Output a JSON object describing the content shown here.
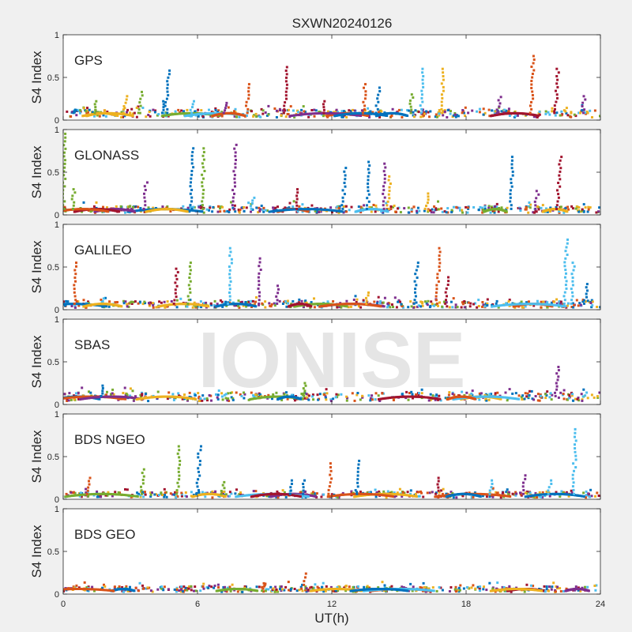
{
  "watermark": "IONISE",
  "chart_data": {
    "type": "scatter",
    "title": "SXWN20240126",
    "xlabel": "UT(h)",
    "ylabel": "S4 Index",
    "xlim": [
      0,
      24
    ],
    "ylim": [
      0,
      1
    ],
    "xticks": [
      0,
      6,
      12,
      18,
      24
    ],
    "yticks": [
      0,
      0.5,
      1
    ],
    "ytick_labels": [
      "0",
      "0.5",
      "1"
    ],
    "grid": false,
    "series_colors": [
      "#0072BD",
      "#D95319",
      "#EDB120",
      "#7E2F8E",
      "#77AC30",
      "#4DBEEE",
      "#A2142F"
    ],
    "panels": [
      {
        "label": "GPS",
        "baseline": [
          0.08,
          0.12
        ],
        "spikes": [
          {
            "x": 0.6,
            "y": 0.12,
            "c": 0
          },
          {
            "x": 1.5,
            "y": 0.22,
            "c": 4
          },
          {
            "x": 2.8,
            "y": 0.28,
            "c": 2
          },
          {
            "x": 3.5,
            "y": 0.33,
            "c": 4
          },
          {
            "x": 4.5,
            "y": 0.22,
            "c": 0
          },
          {
            "x": 4.7,
            "y": 0.58,
            "c": 0
          },
          {
            "x": 5.8,
            "y": 0.22,
            "c": 5
          },
          {
            "x": 7.3,
            "y": 0.2,
            "c": 3
          },
          {
            "x": 8.3,
            "y": 0.42,
            "c": 1
          },
          {
            "x": 10.0,
            "y": 0.62,
            "c": 6
          },
          {
            "x": 11.7,
            "y": 0.22,
            "c": 6
          },
          {
            "x": 13.5,
            "y": 0.42,
            "c": 1
          },
          {
            "x": 14.1,
            "y": 0.38,
            "c": 0
          },
          {
            "x": 15.6,
            "y": 0.3,
            "c": 4
          },
          {
            "x": 16.1,
            "y": 0.6,
            "c": 5
          },
          {
            "x": 17.0,
            "y": 0.6,
            "c": 2
          },
          {
            "x": 19.5,
            "y": 0.27,
            "c": 3
          },
          {
            "x": 21.0,
            "y": 0.75,
            "c": 1
          },
          {
            "x": 22.1,
            "y": 0.6,
            "c": 6
          },
          {
            "x": 23.3,
            "y": 0.28,
            "c": 3
          }
        ]
      },
      {
        "label": "GLONASS",
        "baseline": [
          0.06,
          0.1
        ],
        "spikes": [
          {
            "x": 0.1,
            "y": 0.95,
            "c": 4
          },
          {
            "x": 0.5,
            "y": 0.3,
            "c": 4
          },
          {
            "x": 3.7,
            "y": 0.38,
            "c": 3
          },
          {
            "x": 5.8,
            "y": 0.78,
            "c": 0
          },
          {
            "x": 6.3,
            "y": 0.78,
            "c": 4
          },
          {
            "x": 7.7,
            "y": 0.82,
            "c": 3
          },
          {
            "x": 8.5,
            "y": 0.2,
            "c": 5
          },
          {
            "x": 10.5,
            "y": 0.3,
            "c": 6
          },
          {
            "x": 12.6,
            "y": 0.55,
            "c": 0
          },
          {
            "x": 13.7,
            "y": 0.62,
            "c": 0
          },
          {
            "x": 14.4,
            "y": 0.6,
            "c": 3
          },
          {
            "x": 14.6,
            "y": 0.45,
            "c": 2
          },
          {
            "x": 16.3,
            "y": 0.25,
            "c": 2
          },
          {
            "x": 20.1,
            "y": 0.68,
            "c": 0
          },
          {
            "x": 21.2,
            "y": 0.28,
            "c": 3
          },
          {
            "x": 22.2,
            "y": 0.68,
            "c": 6
          }
        ]
      },
      {
        "label": "GALILEO",
        "baseline": [
          0.06,
          0.1
        ],
        "spikes": [
          {
            "x": 0.6,
            "y": 0.55,
            "c": 1
          },
          {
            "x": 5.1,
            "y": 0.48,
            "c": 6
          },
          {
            "x": 5.7,
            "y": 0.55,
            "c": 4
          },
          {
            "x": 7.5,
            "y": 0.72,
            "c": 5
          },
          {
            "x": 8.8,
            "y": 0.6,
            "c": 3
          },
          {
            "x": 9.6,
            "y": 0.28,
            "c": 3
          },
          {
            "x": 13.6,
            "y": 0.2,
            "c": 2
          },
          {
            "x": 15.8,
            "y": 0.55,
            "c": 0
          },
          {
            "x": 16.8,
            "y": 0.72,
            "c": 1
          },
          {
            "x": 17.2,
            "y": 0.38,
            "c": 6
          },
          {
            "x": 22.5,
            "y": 0.82,
            "c": 5
          },
          {
            "x": 22.8,
            "y": 0.55,
            "c": 5
          },
          {
            "x": 23.4,
            "y": 0.3,
            "c": 0
          }
        ]
      },
      {
        "label": "SBAS",
        "baseline": [
          0.1,
          0.14
        ],
        "spikes": [
          {
            "x": 1.8,
            "y": 0.22,
            "c": 0
          },
          {
            "x": 10.8,
            "y": 0.25,
            "c": 4
          },
          {
            "x": 22.1,
            "y": 0.44,
            "c": 3
          }
        ]
      },
      {
        "label": "BDS NGEO",
        "baseline": [
          0.05,
          0.09
        ],
        "spikes": [
          {
            "x": 1.2,
            "y": 0.25,
            "c": 1
          },
          {
            "x": 3.6,
            "y": 0.35,
            "c": 4
          },
          {
            "x": 5.2,
            "y": 0.62,
            "c": 4
          },
          {
            "x": 6.1,
            "y": 0.62,
            "c": 0
          },
          {
            "x": 7.2,
            "y": 0.2,
            "c": 4
          },
          {
            "x": 10.2,
            "y": 0.22,
            "c": 0
          },
          {
            "x": 10.8,
            "y": 0.22,
            "c": 0
          },
          {
            "x": 12.0,
            "y": 0.42,
            "c": 1
          },
          {
            "x": 13.2,
            "y": 0.45,
            "c": 0
          },
          {
            "x": 16.8,
            "y": 0.25,
            "c": 6
          },
          {
            "x": 19.2,
            "y": 0.22,
            "c": 5
          },
          {
            "x": 20.6,
            "y": 0.28,
            "c": 3
          },
          {
            "x": 21.8,
            "y": 0.22,
            "c": 5
          },
          {
            "x": 22.9,
            "y": 0.82,
            "c": 5
          }
        ]
      },
      {
        "label": "BDS GEO",
        "baseline": [
          0.06,
          0.09
        ],
        "spikes": [
          {
            "x": 9.0,
            "y": 0.12,
            "c": 1
          },
          {
            "x": 10.8,
            "y": 0.24,
            "c": 1
          }
        ]
      }
    ]
  }
}
